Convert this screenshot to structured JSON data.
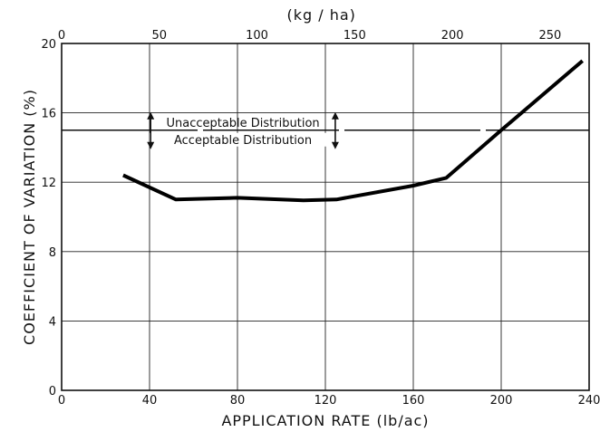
{
  "chart_data": {
    "type": "line",
    "title": "",
    "xlabel": "APPLICATION RATE (lb/ac)",
    "ylabel": "COEFFICIENT OF VARIATION (%)",
    "x2label": "(kg / ha)",
    "xlim": [
      0,
      240
    ],
    "ylim": [
      0,
      20
    ],
    "x2lim": [
      0,
      270
    ],
    "xticks": [
      0,
      40,
      80,
      120,
      160,
      200,
      240
    ],
    "yticks": [
      0,
      4,
      8,
      12,
      16,
      20
    ],
    "x2ticks": [
      0,
      50,
      100,
      150,
      200,
      250
    ],
    "grid": true,
    "threshold": {
      "y": 15,
      "above_label": "Unacceptable Distribution",
      "below_label": "Acceptable Distribution"
    },
    "series": [
      {
        "x": [
          28,
          52,
          80,
          110,
          125,
          160,
          175,
          200,
          237
        ],
        "y": [
          12.4,
          11.0,
          11.1,
          10.95,
          11.0,
          11.8,
          12.25,
          15.0,
          19.0
        ]
      }
    ]
  }
}
